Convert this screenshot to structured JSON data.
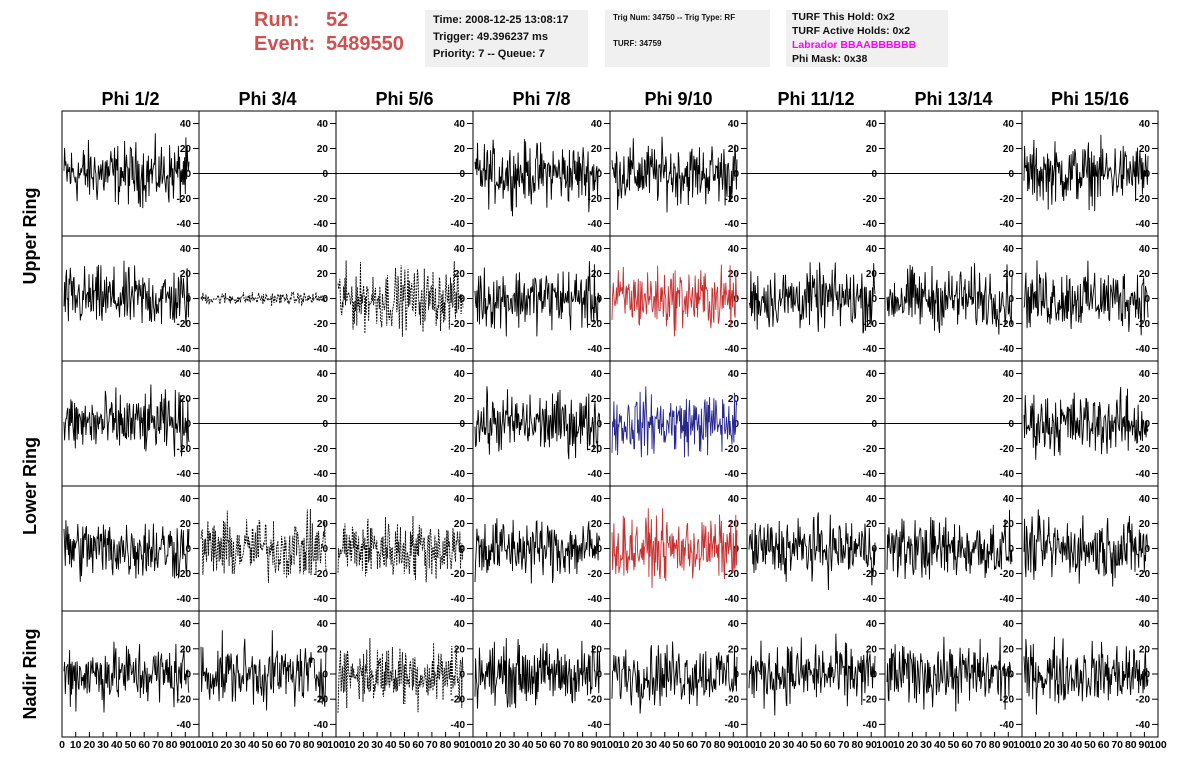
{
  "header": {
    "run_label": "Run:",
    "run_value": "52",
    "event_label": "Event:",
    "event_value": "5489550"
  },
  "info_box_1": {
    "time": "Time: 2008-12-25 13:08:17",
    "trigger": "Trigger: 49.396237 ms",
    "priority": "Priority: 7 -- Queue: 7"
  },
  "info_box_2": {
    "trig": "Trig Num: 34750 -- Trig Type: RF",
    "turf": "TURF: 34759"
  },
  "info_box_3": {
    "hold": "TURF This Hold: 0x2",
    "active": "TURF Active Holds: 0x2",
    "labrador": "Labrador BBAABBBBBB",
    "mask": "Phi Mask: 0x38",
    "labrador_color": "#ff00ff"
  },
  "chart_data": {
    "type": "line",
    "columns": [
      "Phi 1/2",
      "Phi 3/4",
      "Phi 5/6",
      "Phi 7/8",
      "Phi 9/10",
      "Phi 11/12",
      "Phi 13/14",
      "Phi 15/16"
    ],
    "ring_labels": [
      "Upper Ring",
      "Lower Ring",
      "Nadir Ring"
    ],
    "rows": 5,
    "y_ticks": [
      40,
      20,
      0,
      -20,
      -40
    ],
    "ylim": [
      -50,
      50
    ],
    "x_tick_labels": [
      "0",
      "10",
      "20",
      "30",
      "40",
      "50",
      "60",
      "70",
      "80",
      "90",
      "100"
    ],
    "xlim": [
      0,
      100
    ],
    "panels": [
      [
        "noise",
        "flat",
        "flat",
        "noise",
        "noise",
        "flat",
        "flat",
        "noise"
      ],
      [
        "noise",
        "dashsmall",
        "dash",
        "noise",
        "noise-red",
        "noise",
        "noise",
        "noise"
      ],
      [
        "noise",
        "flat",
        "flat",
        "noise",
        "noise-blue",
        "flat-thin",
        "flat",
        "noise"
      ],
      [
        "noise",
        "dash",
        "dash",
        "noise",
        "noise-red",
        "noise",
        "noise",
        "noise"
      ],
      [
        "noise",
        "noise",
        "dash",
        "noise",
        "noise",
        "noise",
        "noise",
        "noise"
      ]
    ],
    "amplitude": 15,
    "colors": {
      "black": "#000000",
      "red": "#c83030",
      "blue": "#28288c"
    }
  }
}
